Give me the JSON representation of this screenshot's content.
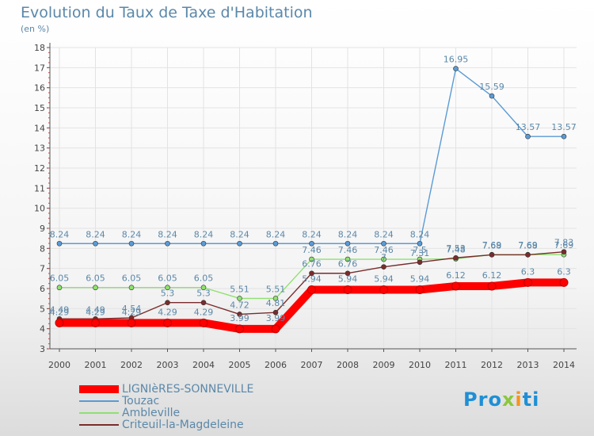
{
  "header": {
    "title": "Evolution du Taux de Taxe d'Habitation",
    "subtitle": "(en %)"
  },
  "colors": {
    "axis": "#555555",
    "grid": "#e3e3e3",
    "tick_text": "#444444",
    "label_text": "#5b88a9",
    "background_bottom": "#dcdcdc"
  },
  "logo": {
    "text": "Proxiti"
  },
  "chart_data": {
    "type": "line",
    "title": "Evolution du Taux de Taxe d'Habitation",
    "subtitle": "(en %)",
    "xlabel": "",
    "ylabel": "",
    "x": [
      "2000",
      "2001",
      "2002",
      "2003",
      "2004",
      "2005",
      "2006",
      "2007",
      "2008",
      "2009",
      "2010",
      "2011",
      "2012",
      "2013",
      "2014"
    ],
    "ylim": [
      3,
      18
    ],
    "yticks": [
      "3",
      "4",
      "5",
      "6",
      "7",
      "8",
      "9",
      "10",
      "11",
      "12",
      "13",
      "14",
      "15",
      "16",
      "17",
      "18"
    ],
    "grid": true,
    "legend_position": "bottom-left",
    "series": [
      {
        "name": "LIGNIèRES-SONNEVILLE",
        "color": "#ff0000",
        "values": [
          4.29,
          4.29,
          4.29,
          4.29,
          4.29,
          3.99,
          3.99,
          5.94,
          5.94,
          5.94,
          5.94,
          6.12,
          6.12,
          6.3,
          6.3
        ],
        "labels": [
          "4.29",
          "4.29",
          "4.29",
          "4.29",
          "4.29",
          "3.99",
          "3.99",
          "5.94",
          "5.94",
          "5.94",
          "5.94",
          "6.12",
          "6.12",
          "6.3",
          "6.3"
        ]
      },
      {
        "name": "Touzac",
        "color": "#5b9bd5",
        "values": [
          8.24,
          8.24,
          8.24,
          8.24,
          8.24,
          8.24,
          8.24,
          8.24,
          8.24,
          8.24,
          8.24,
          16.95,
          15.59,
          13.57,
          13.57
        ],
        "labels": [
          "8.24",
          "8.24",
          "8.24",
          "8.24",
          "8.24",
          "8.24",
          "8.24",
          "8.24",
          "8.24",
          "8.24",
          "8.24",
          "16.95",
          "15.59",
          "13.57",
          "13.57"
        ]
      },
      {
        "name": "Ambleville",
        "color": "#8fe070",
        "values": [
          6.05,
          6.05,
          6.05,
          6.05,
          6.05,
          5.51,
          5.51,
          7.46,
          7.46,
          7.46,
          7.46,
          7.48,
          7.69,
          7.69,
          7.69
        ],
        "labels": [
          "6.05",
          "6.05",
          "6.05",
          "6.05",
          "6.05",
          "5.51",
          "5.51",
          "7.46",
          "7.46",
          "7.46",
          "7.5",
          "7.48",
          "7.69",
          "7.69",
          "7.69"
        ]
      },
      {
        "name": "Criteuil-la-Magdeleine",
        "color": "#7a2c2c",
        "values": [
          4.49,
          4.49,
          4.54,
          5.3,
          5.3,
          4.72,
          4.81,
          6.76,
          6.76,
          7.08,
          7.31,
          7.53,
          7.68,
          7.68,
          7.83
        ],
        "labels": [
          "4.49",
          "4.49",
          "4.54",
          "5.3",
          "5.3",
          "4.72",
          "4.81",
          "6.76",
          "6.76",
          "7",
          "7.31",
          "7.53",
          "7.68",
          "7.68",
          "7.83"
        ]
      }
    ]
  }
}
